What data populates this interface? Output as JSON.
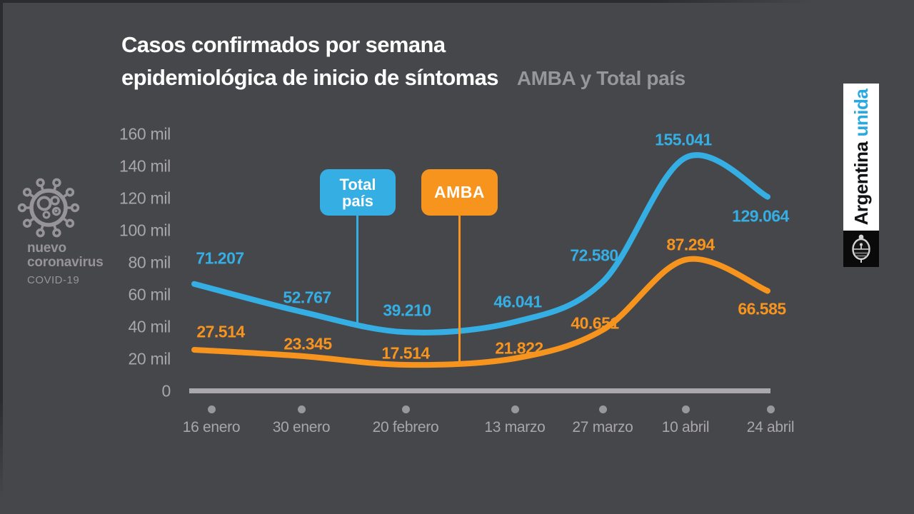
{
  "header": {
    "title_line1": "Casos confirmados por semana",
    "title_line2": "epidemiológica de inicio de síntomas",
    "subtitle": "AMBA y Total país"
  },
  "branding": {
    "icon": "coronavirus-icon",
    "name_line1": "nuevo",
    "name_line2": "coronavirus",
    "sub_label": "COVID-19"
  },
  "banner": {
    "word_dark": "Argentina",
    "word_accent": "unida",
    "emblem": "argentina-coat-of-arms"
  },
  "colors": {
    "background": "#46474b",
    "total_pais_blue": "#35aee3",
    "amba_orange": "#f7941e",
    "axis_gray": "#a9a8ac",
    "tick_label_gray": "#a8a6aa",
    "title_white": "#ffffff",
    "subtitle_gray": "#97969a"
  },
  "chart_data": {
    "type": "line",
    "title": "Casos confirmados por semana epidemiológica de inicio de síntomas",
    "subtitle": "AMBA y Total país",
    "x_tick_labels": [
      "16 enero",
      "30 enero",
      "20 febrero",
      "13 marzo",
      "27 marzo",
      "10 abril",
      "24 abril"
    ],
    "y_tick_labels": [
      "160 mil",
      "140 mil",
      "120 mil",
      "100 mil",
      "80 mil",
      "60 mil",
      "40 mil",
      "20 mil",
      "0"
    ],
    "ylim": [
      0,
      160000
    ],
    "grid": false,
    "legend_position": "callout-boxes-above-lines",
    "series": [
      {
        "name": "Total país",
        "color": "#35aee3",
        "values": [
          71207,
          52767,
          39210,
          46041,
          72580,
          155041,
          129064
        ],
        "value_labels": [
          "71.207",
          "52.767",
          "39.210",
          "46.041",
          "72.580",
          "155.041",
          "129.064"
        ]
      },
      {
        "name": "AMBA",
        "color": "#f7941e",
        "values": [
          27514,
          23345,
          17514,
          21822,
          40651,
          87294,
          66585
        ],
        "value_labels": [
          "27.514",
          "23.345",
          "17.514",
          "21.822",
          "40.651",
          "87.294",
          "66.585"
        ]
      }
    ]
  }
}
